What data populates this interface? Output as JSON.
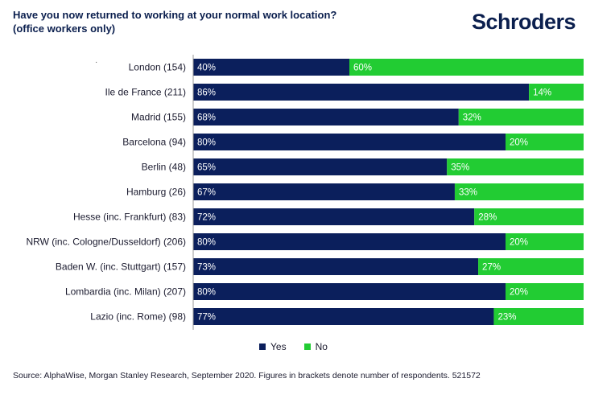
{
  "title": {
    "line1": "Have you now returned to working at your normal work location?",
    "line2": "(office workers only)"
  },
  "brand": "Schroders",
  "decoration": {
    "dot": "·"
  },
  "colors": {
    "yes": "#0b1f5c",
    "no": "#22cc33",
    "axis": "#999999"
  },
  "chart_data": {
    "type": "bar",
    "orientation": "horizontal",
    "stacked": true,
    "categories": [
      "London (154)",
      "Ile de France (211)",
      "Madrid (155)",
      "Barcelona (94)",
      "Berlin (48)",
      "Hamburg (26)",
      "Hesse (inc. Frankfurt) (83)",
      "NRW (inc. Cologne/Dusseldorf) (206)",
      "Baden W. (inc. Stuttgart) (157)",
      "Lombardia (inc. Milan) (207)",
      "Lazio (inc. Rome) (98)"
    ],
    "series": [
      {
        "name": "Yes",
        "values": [
          40,
          86,
          68,
          80,
          65,
          67,
          72,
          80,
          73,
          80,
          77
        ]
      },
      {
        "name": "No",
        "values": [
          60,
          14,
          32,
          20,
          35,
          33,
          28,
          20,
          27,
          20,
          23
        ]
      }
    ],
    "value_labels": {
      "Yes": [
        "40%",
        "86%",
        "68%",
        "80%",
        "65%",
        "67%",
        "72%",
        "80%",
        "73%",
        "80%",
        "77%"
      ],
      "No": [
        "60%",
        "14%",
        "32%",
        "20%",
        "35%",
        "33%",
        "28%",
        "20%",
        "27%",
        "20%",
        "23%"
      ]
    },
    "xlim": [
      0,
      100
    ],
    "grid": false,
    "legend_position": "bottom"
  },
  "source": "Source: AlphaWise, Morgan Stanley Research, September 2020. Figures in brackets denote number of respondents. 521572"
}
